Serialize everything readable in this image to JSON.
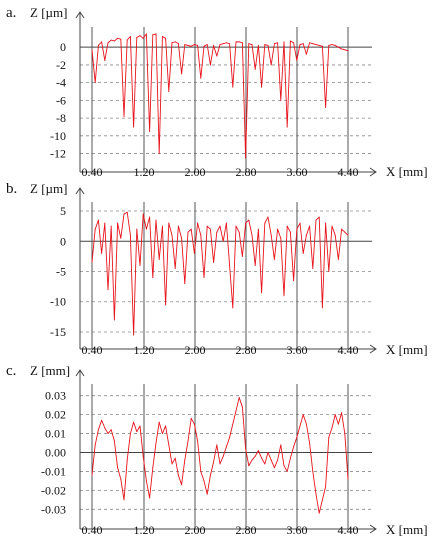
{
  "colors": {
    "trace": "#e8141c",
    "axis": "#444444",
    "grid": "#8a8a8a",
    "text": "#111111"
  },
  "chart_data": [
    {
      "type": "line",
      "panel_label": "a.",
      "ylabel": "Z [µm]",
      "xlabel": "X [mm]",
      "ylim": [
        -12.5,
        1.6
      ],
      "xlim": [
        0.4,
        4.4
      ],
      "grid": "horizontal dashed",
      "y_ticks": [
        0,
        -2,
        -4,
        -6,
        -8,
        -10,
        -12
      ],
      "y_tick_labels": [
        "0",
        "-2",
        "-4",
        "-6",
        "-8",
        "-10",
        "-12"
      ],
      "x_ticks": [
        0.4,
        1.2,
        2.0,
        2.8,
        3.6,
        4.4
      ],
      "x_tick_labels": [
        "0.40",
        "1.20",
        "2.00",
        "2.80",
        "3.60",
        "4.40"
      ],
      "series": [
        {
          "x": [
            0.4,
            0.45,
            0.5,
            0.55,
            0.6,
            0.65,
            0.7,
            0.75,
            0.8,
            0.85,
            0.9,
            0.95,
            1.0,
            1.05,
            1.1,
            1.15,
            1.2,
            1.25,
            1.3,
            1.35,
            1.4,
            1.45,
            1.5,
            1.55,
            1.6,
            1.65,
            1.7,
            1.75,
            1.8,
            1.85,
            1.9,
            1.95,
            2.0,
            2.05,
            2.1,
            2.15,
            2.2,
            2.25,
            2.3,
            2.35,
            2.4,
            2.45,
            2.5,
            2.55,
            2.6,
            2.65,
            2.7,
            2.75,
            2.8,
            2.85,
            2.9,
            2.95,
            3.0,
            3.05,
            3.1,
            3.15,
            3.2,
            3.25,
            3.3,
            3.35,
            3.4,
            3.45,
            3.5,
            3.55,
            3.6,
            3.65,
            3.7,
            3.75,
            3.8,
            3.85,
            3.9,
            3.95,
            4.0,
            4.05,
            4.1,
            4.15,
            4.2,
            4.25,
            4.3,
            4.35,
            4.4
          ],
          "y": [
            -0.3,
            -4.0,
            0.2,
            0.6,
            -1.5,
            0.5,
            0.8,
            0.7,
            1.0,
            0.9,
            -7.8,
            0.8,
            1.2,
            -9.0,
            1.1,
            1.3,
            1.0,
            1.5,
            -9.5,
            1.4,
            1.5,
            -12.0,
            1.2,
            1.0,
            -5.0,
            0.5,
            0.6,
            0.4,
            -3.0,
            0.3,
            0.2,
            0.1,
            0.3,
            0.2,
            -3.5,
            0.1,
            0.3,
            -2.0,
            0.2,
            -1.0,
            0.3,
            0.4,
            0.5,
            0.4,
            -4.5,
            0.6,
            0.6,
            0.5,
            -12.5,
            0.4,
            0.3,
            -2.5,
            0.2,
            -4.5,
            0.3,
            0.2,
            -2.0,
            0.4,
            0.5,
            -6.0,
            0.6,
            -9.0,
            0.7,
            0.5,
            -1.5,
            0.3,
            0.4,
            -0.8,
            0.5,
            0.4,
            0.3,
            0.2,
            0.1,
            -6.8,
            0.2,
            0.3,
            0.2,
            0.0,
            -0.2,
            -0.3,
            -0.4
          ]
        }
      ]
    },
    {
      "type": "line",
      "panel_label": "b.",
      "ylabel": "Z [µm]",
      "xlabel": "X [mm]",
      "ylim": [
        -15.5,
        5.5
      ],
      "xlim": [
        0.4,
        4.4
      ],
      "grid": "horizontal dashed",
      "y_ticks": [
        5,
        0,
        -5,
        -10,
        -15
      ],
      "y_tick_labels": [
        "5",
        "0",
        "-5",
        "-10",
        "-15"
      ],
      "x_ticks": [
        0.4,
        1.2,
        2.0,
        2.8,
        3.6,
        4.4
      ],
      "x_tick_labels": [
        "0.40",
        "1.20",
        "2.00",
        "2.80",
        "3.60",
        "4.40"
      ],
      "series": [
        {
          "x": [
            0.4,
            0.45,
            0.5,
            0.55,
            0.6,
            0.65,
            0.7,
            0.75,
            0.8,
            0.85,
            0.9,
            0.95,
            1.0,
            1.05,
            1.1,
            1.15,
            1.2,
            1.25,
            1.3,
            1.35,
            1.4,
            1.45,
            1.5,
            1.55,
            1.6,
            1.65,
            1.7,
            1.75,
            1.8,
            1.85,
            1.9,
            1.95,
            2.0,
            2.05,
            2.1,
            2.15,
            2.2,
            2.25,
            2.3,
            2.35,
            2.4,
            2.45,
            2.5,
            2.55,
            2.6,
            2.65,
            2.7,
            2.75,
            2.8,
            2.85,
            2.9,
            2.95,
            3.0,
            3.05,
            3.1,
            3.15,
            3.2,
            3.25,
            3.3,
            3.35,
            3.4,
            3.45,
            3.5,
            3.55,
            3.6,
            3.65,
            3.7,
            3.75,
            3.8,
            3.85,
            3.9,
            3.95,
            4.0,
            4.05,
            4.1,
            4.15,
            4.2,
            4.25,
            4.3,
            4.35,
            4.4
          ],
          "y": [
            -3.5,
            2.0,
            3.5,
            -2.0,
            3.0,
            -8.0,
            2.5,
            -13.0,
            3.0,
            0.5,
            4.5,
            4.8,
            1.0,
            -15.5,
            2.0,
            -4.0,
            4.5,
            2.0,
            4.0,
            -6.0,
            3.5,
            -3.0,
            2.5,
            -10.5,
            3.0,
            1.0,
            -4.5,
            2.5,
            0.5,
            -7.0,
            1.5,
            2.0,
            -2.0,
            3.0,
            1.0,
            -6.0,
            2.5,
            2.0,
            -3.5,
            1.5,
            2.5,
            0.0,
            3.0,
            -4.0,
            -11.0,
            2.5,
            1.5,
            -2.5,
            3.0,
            3.5,
            1.0,
            -4.0,
            2.0,
            -8.5,
            3.0,
            4.0,
            1.0,
            -3.0,
            2.0,
            0.5,
            -9.0,
            2.5,
            1.5,
            -6.5,
            2.0,
            3.0,
            -2.0,
            1.0,
            2.5,
            -4.5,
            3.5,
            4.0,
            -11.0,
            3.0,
            -5.0,
            2.5,
            1.0,
            -3.0,
            2.0,
            1.5,
            1.0
          ]
        }
      ]
    },
    {
      "type": "line",
      "panel_label": "c.",
      "ylabel": "Z [mm]",
      "xlabel": "X [mm]",
      "ylim": [
        -0.033,
        0.033
      ],
      "xlim": [
        0.4,
        4.4
      ],
      "grid": "horizontal dashed",
      "y_ticks": [
        0.03,
        0.02,
        0.01,
        0.0,
        -0.01,
        -0.02,
        -0.03
      ],
      "y_tick_labels": [
        "0.03",
        "0.02",
        "0.01",
        "0.00",
        "-0.01",
        "-0.02",
        "-0.03"
      ],
      "x_ticks": [
        0.4,
        1.2,
        2.0,
        2.8,
        3.6,
        4.4
      ],
      "x_tick_labels": [
        "0.40",
        "1.20",
        "2.00",
        "2.80",
        "3.60",
        "4.40"
      ],
      "series": [
        {
          "x": [
            0.4,
            0.45,
            0.5,
            0.55,
            0.6,
            0.65,
            0.7,
            0.75,
            0.8,
            0.85,
            0.9,
            0.95,
            1.0,
            1.05,
            1.1,
            1.15,
            1.2,
            1.25,
            1.3,
            1.35,
            1.4,
            1.45,
            1.5,
            1.55,
            1.6,
            1.65,
            1.7,
            1.75,
            1.8,
            1.85,
            1.9,
            1.95,
            2.0,
            2.05,
            2.1,
            2.15,
            2.2,
            2.25,
            2.3,
            2.35,
            2.4,
            2.45,
            2.5,
            2.55,
            2.6,
            2.65,
            2.7,
            2.75,
            2.8,
            2.85,
            2.9,
            2.95,
            3.0,
            3.05,
            3.1,
            3.15,
            3.2,
            3.25,
            3.3,
            3.35,
            3.4,
            3.45,
            3.5,
            3.55,
            3.6,
            3.65,
            3.7,
            3.75,
            3.8,
            3.85,
            3.9,
            3.95,
            4.0,
            4.05,
            4.1,
            4.15,
            4.2,
            4.25,
            4.3,
            4.35,
            4.4
          ],
          "y": [
            -0.012,
            0.004,
            0.012,
            0.017,
            0.013,
            0.01,
            0.012,
            0.006,
            -0.008,
            -0.014,
            -0.025,
            -0.004,
            0.01,
            0.016,
            0.011,
            0.014,
            -0.002,
            -0.015,
            -0.024,
            -0.008,
            0.005,
            0.016,
            0.01,
            0.014,
            0.004,
            -0.006,
            -0.003,
            -0.012,
            -0.017,
            -0.004,
            0.006,
            0.018,
            0.015,
            0.006,
            -0.01,
            -0.015,
            -0.022,
            -0.012,
            -0.005,
            0.004,
            -0.006,
            -0.002,
            0.003,
            0.008,
            0.015,
            0.022,
            0.029,
            0.024,
            0.002,
            -0.007,
            -0.004,
            -0.002,
            0.001,
            -0.003,
            -0.006,
            0.0,
            -0.004,
            -0.008,
            -0.004,
            0.004,
            -0.007,
            -0.01,
            -0.003,
            0.003,
            0.008,
            0.014,
            0.02,
            0.015,
            0.005,
            -0.01,
            -0.022,
            -0.032,
            -0.025,
            -0.018,
            0.008,
            0.013,
            0.02,
            0.015,
            0.021,
            0.01,
            -0.014
          ]
        }
      ]
    }
  ]
}
